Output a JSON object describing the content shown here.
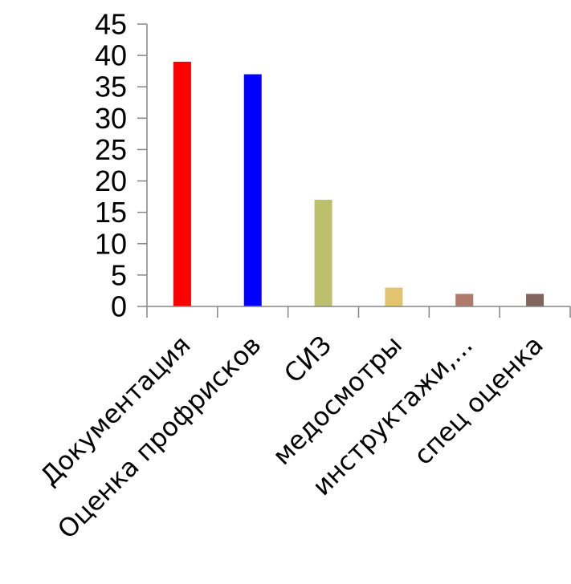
{
  "chart_data": {
    "type": "bar",
    "categories": [
      "Документация",
      "Оценка профрисков",
      "СИЗ",
      "медосмотры",
      "инструктажи,...",
      "спец оценка"
    ],
    "values": [
      39,
      37,
      17,
      3,
      2,
      2
    ],
    "colors": [
      "#ff0000",
      "#0000ff",
      "#bcc06c",
      "#e2c470",
      "#b07a6a",
      "#80665a"
    ],
    "yticks": [
      0,
      5,
      10,
      15,
      20,
      25,
      30,
      35,
      40,
      45
    ],
    "ylim": [
      0,
      45
    ],
    "grid": false,
    "legend": "none"
  }
}
